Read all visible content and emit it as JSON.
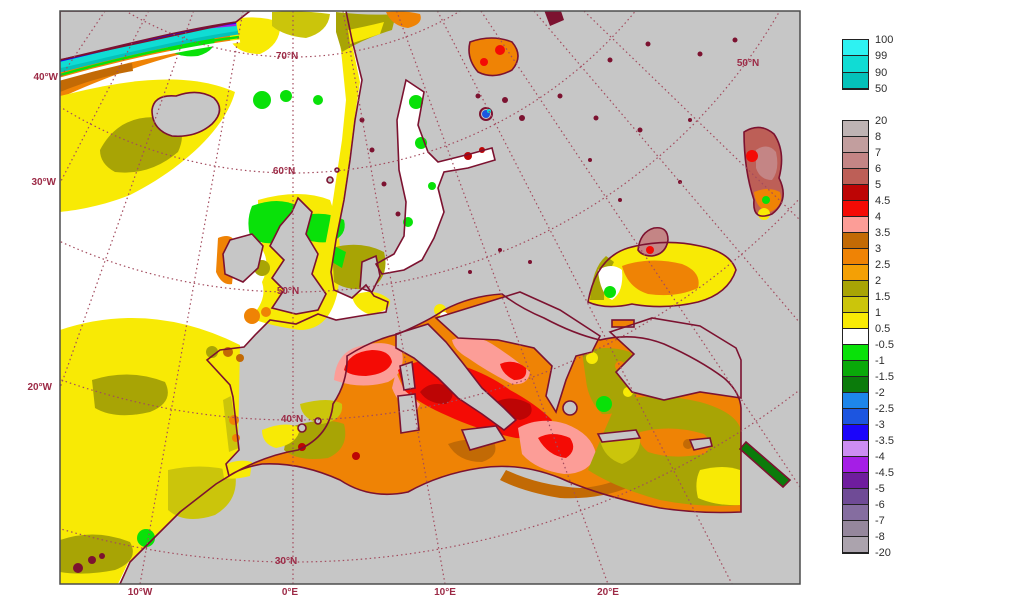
{
  "map": {
    "land_color": "#c6c6c6",
    "ocean_color": "#ffffff",
    "coast_color": "#7c1230",
    "graticule_color": "#a34b5e",
    "frame_color": "#4d4d4d",
    "label_color": "#9c2a46",
    "lon_labels_left": [
      {
        "text": "40°W"
      },
      {
        "text": "30°W"
      },
      {
        "text": "20°W"
      }
    ],
    "lon_labels_bottom": [
      {
        "text": "10°W"
      },
      {
        "text": "0°E"
      },
      {
        "text": "10°E"
      },
      {
        "text": "20°E"
      }
    ],
    "lat_labels": [
      {
        "text": "70°N"
      },
      {
        "text": "60°N"
      },
      {
        "text": "50°N"
      },
      {
        "text": "40°N"
      },
      {
        "text": "30°N"
      },
      {
        "text": "50°N"
      }
    ]
  },
  "legends": {
    "ice": {
      "values": [
        "100",
        "99",
        "90",
        "50"
      ],
      "colors": [
        "#2ef2f2",
        "#10dcd4",
        "#04c2ba"
      ]
    },
    "anomaly": {
      "values": [
        "20",
        "8",
        "7",
        "6",
        "5",
        "4.5",
        "4",
        "3.5",
        "3",
        "2.5",
        "2",
        "1.5",
        "1",
        "0.5",
        "-0.5",
        "-1",
        "-1.5",
        "-2",
        "-2.5",
        "-3",
        "-3.5",
        "-4",
        "-4.5",
        "-5",
        "-6",
        "-7",
        "-8",
        "-20"
      ],
      "colors": [
        "#beb3b3",
        "#c29e9e",
        "#c48585",
        "#bd5f57",
        "#bd0505",
        "#f40b05",
        "#fc9d97",
        "#c26a05",
        "#ef8305",
        "#f4a005",
        "#a8a405",
        "#cbc50b",
        "#f8ea05",
        "#ffffff",
        "#09e109",
        "#09a909",
        "#0b7b0b",
        "#1e86ea",
        "#1c55e0",
        "#1b05fa",
        "#cc8df2",
        "#a51ee6",
        "#6f1d9e",
        "#6f4b96",
        "#856da0",
        "#95879c",
        "#aba3ad"
      ]
    }
  },
  "chart_data": {
    "type": "heatmap",
    "title": "",
    "field": "filled-contour anomaly map with sea-ice concentration overlay",
    "ice_scale_bounds": [
      100,
      99,
      90,
      50
    ],
    "anomaly_scale_bounds": [
      20,
      8,
      7,
      6,
      5,
      4.5,
      4,
      3.5,
      3,
      2.5,
      2,
      1.5,
      1,
      0.5,
      -0.5,
      -1,
      -1.5,
      -2,
      -2.5,
      -3,
      -3.5,
      -4,
      -4.5,
      -5,
      -6,
      -7,
      -8,
      -20
    ],
    "graticule_longitudes": [
      "40°W",
      "30°W",
      "20°W",
      "10°W",
      "0°E",
      "10°E",
      "20°E"
    ],
    "graticule_latitudes": [
      "30°N",
      "40°N",
      "50°N",
      "60°N",
      "70°N"
    ],
    "legend_position": "right"
  }
}
